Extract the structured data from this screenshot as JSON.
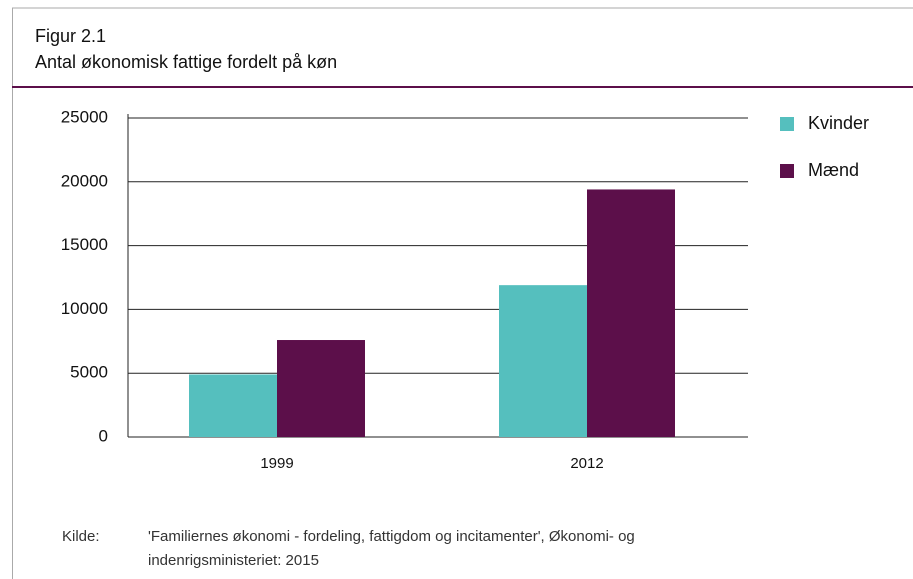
{
  "chart_data": {
    "type": "bar",
    "title": "Figur 2.1",
    "subtitle": "Antal økonomisk fattige fordelt på køn",
    "categories": [
      "1999",
      "2012"
    ],
    "series": [
      {
        "name": "Kvinder",
        "color": "#55bfbe",
        "values": [
          4900,
          11900
        ]
      },
      {
        "name": "Mænd",
        "color": "#5c0f4a",
        "values": [
          7600,
          19400
        ]
      }
    ],
    "ylim": [
      0,
      25000
    ],
    "yticks": [
      0,
      5000,
      10000,
      15000,
      20000,
      25000
    ],
    "grid": true,
    "legend": "right",
    "source_label": "Kilde:",
    "source": "'Familiernes økonomi - fordeling, fattigdom og incitamenter', Økonomi- og indenrigsministeriet: 2015"
  }
}
